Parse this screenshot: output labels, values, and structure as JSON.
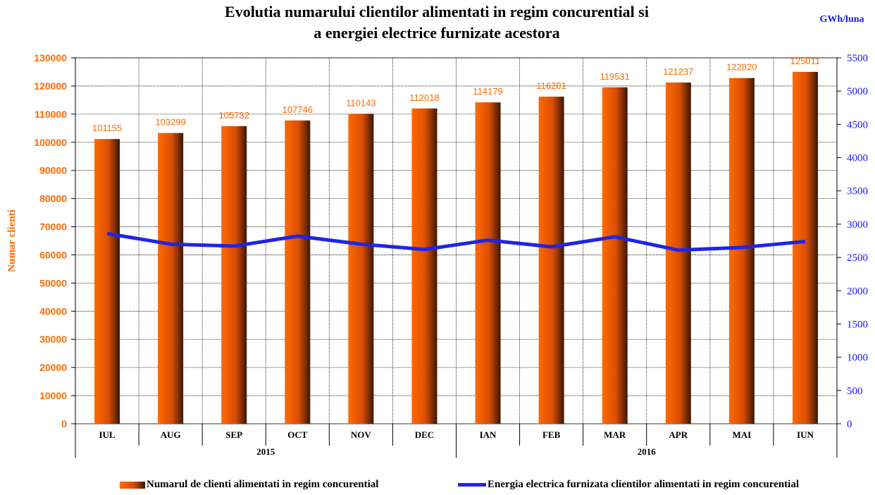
{
  "title_line1": "Evolutia numarului clientilor alimentati in regim concurential si",
  "title_line2": "a energiei electrice furnizate acestora",
  "colors": {
    "bar_light": "#ff6a00",
    "bar_mid": "#d94e05",
    "bar_dark": "#3a1700",
    "label_orange": "#ff6a00",
    "line_blue": "#1f24e8",
    "right_axis_blue": "#1515ff"
  },
  "legend": {
    "bars": "Numarul de clienti alimentati in regim concurential",
    "line": "Energia electrica furnizata clientilor alimentati in regim concurential"
  },
  "chart_data": {
    "type": "bar",
    "title": "Evolutia numarului clientilor alimentati in regim concurential si a energiei electrice furnizate acestora",
    "categories": [
      "IUL",
      "AUG",
      "SEP",
      "OCT",
      "NOV",
      "DEC",
      "IAN",
      "FEB",
      "MAR",
      "APR",
      "MAI",
      "IUN"
    ],
    "year_groups": [
      {
        "label": "2015",
        "count": 6
      },
      {
        "label": "2016",
        "count": 6
      }
    ],
    "ylabel": "Numar clienti",
    "ylim": [
      0,
      130000
    ],
    "y_ticks": [
      0,
      10000,
      20000,
      30000,
      40000,
      50000,
      60000,
      70000,
      80000,
      90000,
      100000,
      110000,
      120000,
      130000
    ],
    "y2label": "GWh/luna",
    "y2lim": [
      0,
      5500
    ],
    "y2_ticks": [
      0,
      500,
      1000,
      1500,
      2000,
      2500,
      3000,
      3500,
      4000,
      4500,
      5000,
      5500
    ],
    "series": [
      {
        "name": "Numarul de clienti alimentati in regim concurential",
        "type": "bar",
        "axis": "left",
        "values": [
          101155,
          103299,
          105732,
          107746,
          110143,
          112018,
          114179,
          116201,
          119531,
          121237,
          122820,
          125011
        ]
      },
      {
        "name": "Energia electrica furnizata clientilor alimentati in regim concurential",
        "type": "line",
        "axis": "right",
        "values": [
          2860,
          2700,
          2670,
          2820,
          2700,
          2620,
          2760,
          2660,
          2810,
          2610,
          2650,
          2740
        ]
      }
    ],
    "grid": true,
    "data_labels": true,
    "legend_position": "bottom"
  }
}
